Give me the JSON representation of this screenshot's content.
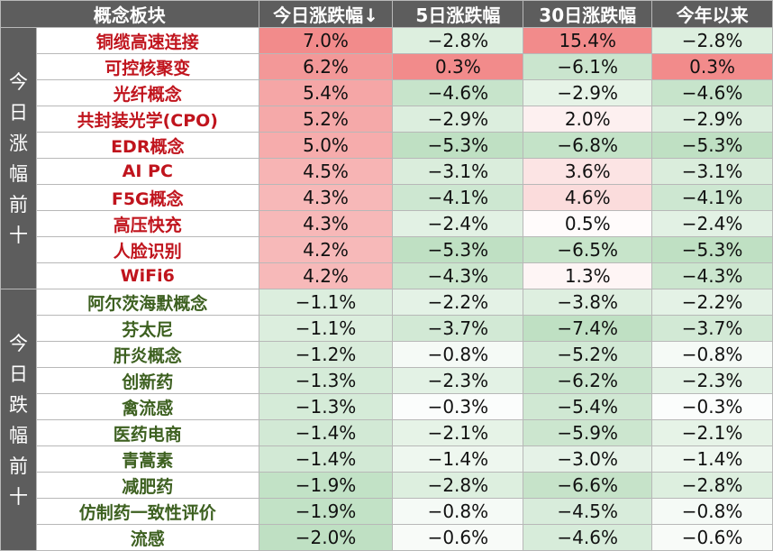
{
  "chart_data": {
    "type": "table",
    "columns": [
      "概念板块",
      "今日涨跌幅↓",
      "5日涨跌幅",
      "30日涨跌幅",
      "今年以来"
    ],
    "groups": [
      {
        "label": "今日涨幅前十",
        "direction": "up",
        "rows": [
          {
            "name": "铜缆高速连接",
            "values": [
              "7.0%",
              "−2.8%",
              "15.4%",
              "−2.8%"
            ]
          },
          {
            "name": "可控核聚变",
            "values": [
              "6.2%",
              "0.3%",
              "−6.1%",
              "0.3%"
            ]
          },
          {
            "name": "光纤概念",
            "values": [
              "5.4%",
              "−4.6%",
              "−2.9%",
              "−4.6%"
            ]
          },
          {
            "name": "共封装光学(CPO)",
            "values": [
              "5.2%",
              "−2.9%",
              "2.0%",
              "−2.9%"
            ]
          },
          {
            "name": "EDR概念",
            "values": [
              "5.0%",
              "−5.3%",
              "−6.8%",
              "−5.3%"
            ]
          },
          {
            "name": "AI PC",
            "values": [
              "4.5%",
              "−3.1%",
              "3.6%",
              "−3.1%"
            ]
          },
          {
            "name": "F5G概念",
            "values": [
              "4.3%",
              "−4.1%",
              "4.6%",
              "−4.1%"
            ]
          },
          {
            "name": "高压快充",
            "values": [
              "4.3%",
              "−2.4%",
              "0.5%",
              "−2.4%"
            ]
          },
          {
            "name": "人脸识别",
            "values": [
              "4.2%",
              "−5.3%",
              "−6.5%",
              "−5.3%"
            ]
          },
          {
            "name": "WiFi6",
            "values": [
              "4.2%",
              "−4.3%",
              "1.3%",
              "−4.3%"
            ]
          }
        ]
      },
      {
        "label": "今日跌幅前十",
        "direction": "down",
        "rows": [
          {
            "name": "阿尔茨海默概念",
            "values": [
              "−1.1%",
              "−2.2%",
              "−3.8%",
              "−2.2%"
            ]
          },
          {
            "name": "芬太尼",
            "values": [
              "−1.1%",
              "−3.7%",
              "−7.4%",
              "−3.7%"
            ]
          },
          {
            "name": "肝炎概念",
            "values": [
              "−1.2%",
              "−0.8%",
              "−5.2%",
              "−0.8%"
            ]
          },
          {
            "name": "创新药",
            "values": [
              "−1.3%",
              "−2.3%",
              "−6.2%",
              "−2.3%"
            ]
          },
          {
            "name": "禽流感",
            "values": [
              "−1.3%",
              "−0.3%",
              "−5.4%",
              "−0.3%"
            ]
          },
          {
            "name": "医药电商",
            "values": [
              "−1.4%",
              "−2.1%",
              "−5.9%",
              "−2.1%"
            ]
          },
          {
            "name": "青蒿素",
            "values": [
              "−1.4%",
              "−1.4%",
              "−3.0%",
              "−1.4%"
            ]
          },
          {
            "name": "减肥药",
            "values": [
              "−1.9%",
              "−2.8%",
              "−6.6%",
              "−2.8%"
            ]
          },
          {
            "name": "仿制药一致性评价",
            "values": [
              "−1.9%",
              "−0.8%",
              "−4.5%",
              "−0.8%"
            ]
          },
          {
            "name": "流感",
            "values": [
              "−2.0%",
              "−0.6%",
              "−4.6%",
              "−0.6%"
            ]
          }
        ]
      }
    ],
    "colors": {
      "header_bg": "#5d5d5d",
      "header_text": "#ffffff",
      "up_name": "#c0141d",
      "down_name": "#3d6020",
      "positive_scale": [
        "#ffffff",
        "#f28b8b"
      ],
      "negative_scale": [
        "#ffffff",
        "#bfe0c3"
      ]
    }
  }
}
